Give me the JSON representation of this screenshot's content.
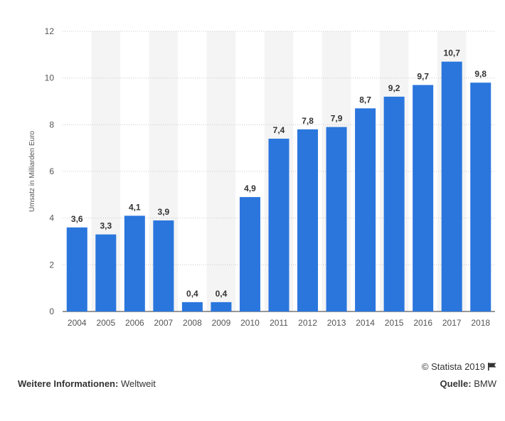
{
  "chart_data": {
    "type": "bar",
    "categories": [
      "2004",
      "2005",
      "2006",
      "2007",
      "2008",
      "2009",
      "2010",
      "2011",
      "2012",
      "2013",
      "2014",
      "2015",
      "2016",
      "2017",
      "2018"
    ],
    "values": [
      3.6,
      3.3,
      4.1,
      3.9,
      0.4,
      0.4,
      4.9,
      7.4,
      7.8,
      7.9,
      8.7,
      9.2,
      9.7,
      10.7,
      9.8
    ],
    "value_labels": [
      "3,6",
      "3,3",
      "4,1",
      "3,9",
      "0,4",
      "0,4",
      "4,9",
      "7,4",
      "7,8",
      "7,9",
      "8,7",
      "9,2",
      "9,7",
      "10,7",
      "9,8"
    ],
    "ylabel": "Umsatz in Milliarden Euro",
    "xlabel": "",
    "ylim": [
      0,
      12
    ],
    "yticks": [
      0,
      2,
      4,
      6,
      8,
      10,
      12
    ],
    "grid": true,
    "colors": {
      "bar": "#2a76dd",
      "band": "#f4f4f4",
      "grid": "#c8c8c8"
    }
  },
  "footer": {
    "copyright": "© Statista 2019",
    "info_label": "Weitere Informationen:",
    "info_value": "Weltweit",
    "source_label": "Quelle:",
    "source_value": "BMW"
  }
}
